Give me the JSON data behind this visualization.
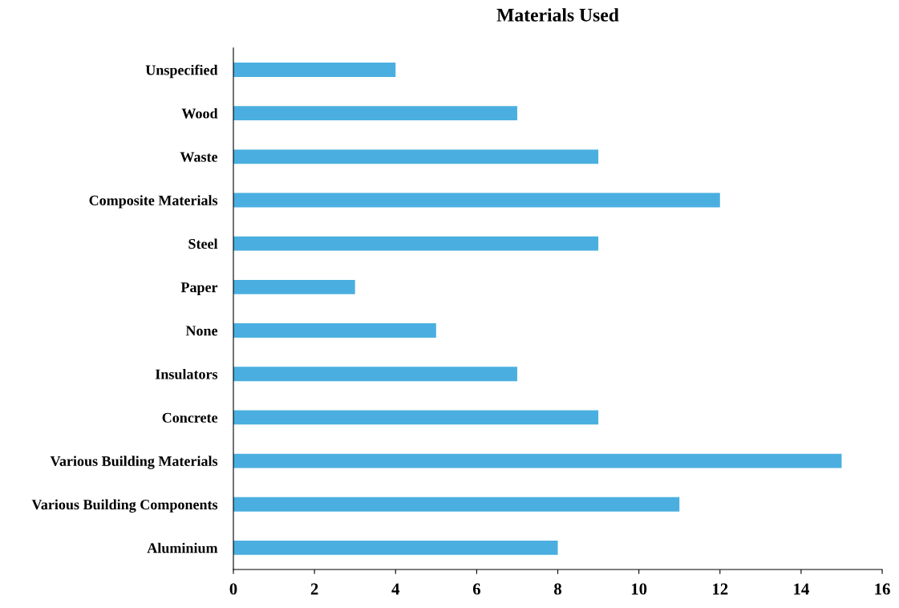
{
  "chart_data": {
    "type": "bar",
    "orientation": "horizontal",
    "title": "Materials Used",
    "categories": [
      "Unspecified",
      "Wood",
      "Waste",
      "Composite Materials",
      "Steel",
      "Paper",
      "None",
      "Insulators",
      "Concrete",
      "Various Building Materials",
      "Various Building Components",
      "Aluminium"
    ],
    "values": [
      4,
      7,
      9,
      12,
      9,
      3,
      5,
      7,
      9,
      15,
      11,
      8
    ],
    "color": "#4aafe0",
    "xlim": [
      0,
      16
    ],
    "xticks": [
      0,
      2,
      4,
      6,
      8,
      10,
      12,
      14,
      16
    ],
    "grid": false,
    "legend": false
  }
}
